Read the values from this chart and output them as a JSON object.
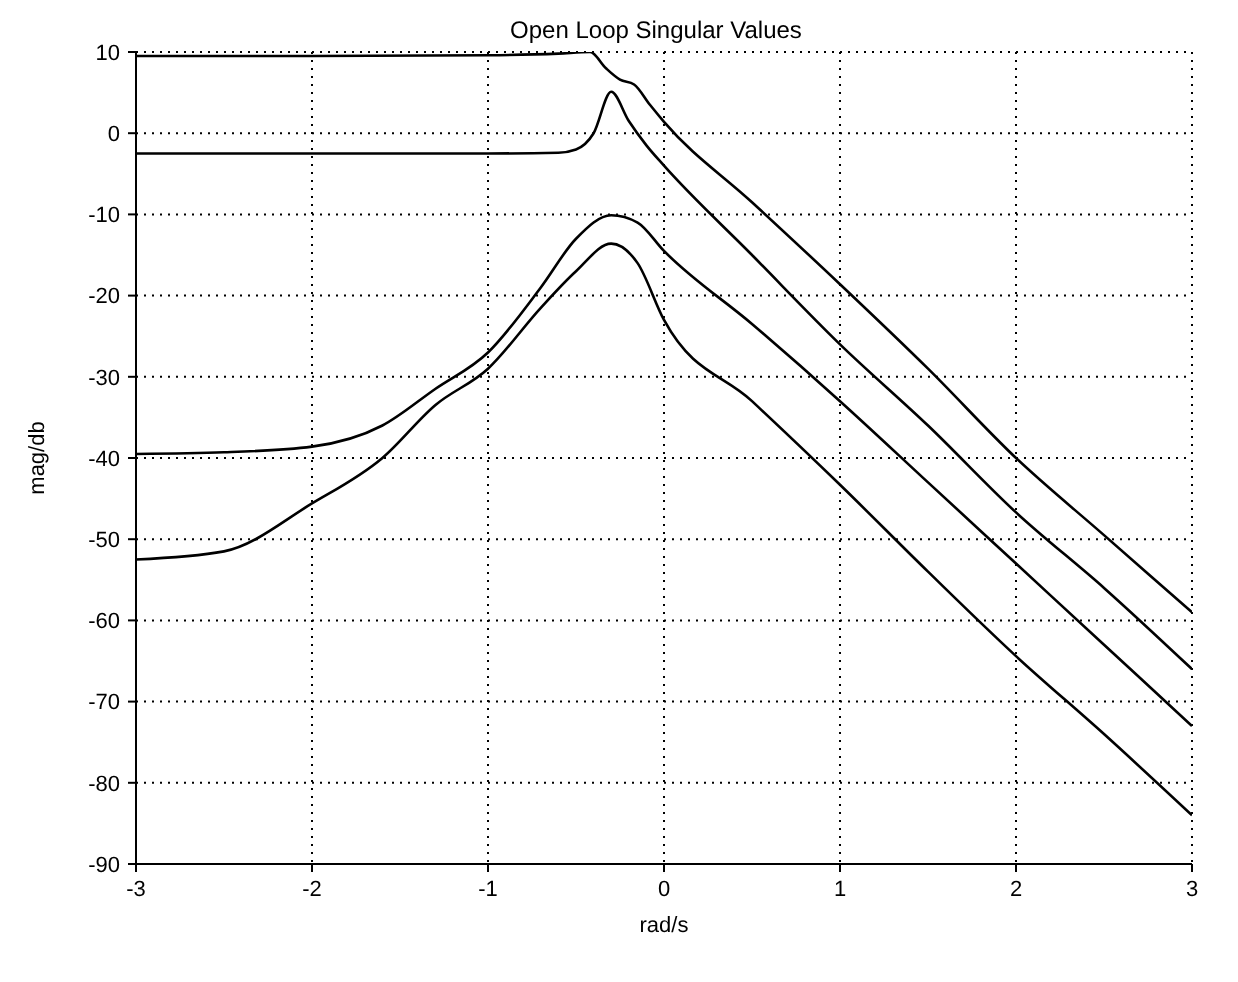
{
  "chart_data": {
    "type": "line",
    "title": "Open Loop Singular Values",
    "xlabel": "rad/s",
    "ylabel": "mag/db",
    "xlim": [
      -3,
      3
    ],
    "xticks": [
      -3,
      -2,
      -1,
      0,
      1,
      2,
      3
    ],
    "ylim": [
      -90,
      10
    ],
    "yticks": [
      -90,
      -80,
      -70,
      -60,
      -50,
      -40,
      -30,
      -20,
      -10,
      0,
      10
    ],
    "grid": true,
    "legend": false,
    "marker": "none",
    "line_style": "solid",
    "series": [
      {
        "color": "#000000",
        "x": [
          -3,
          -2,
          -1,
          -0.6,
          -0.42,
          -0.33,
          -0.25,
          -0.17,
          -0.08,
          0,
          0.5,
          1,
          1.5,
          2,
          2.5,
          3
        ],
        "values": [
          9.5,
          9.5,
          9.6,
          9.8,
          10,
          8,
          6.6,
          6,
          3.5,
          1.4,
          -8.5,
          -18.6,
          -29,
          -40,
          -49.5,
          -59
        ]
      },
      {
        "color": "#000000",
        "x": [
          -3,
          -2,
          -1,
          -0.6,
          -0.5,
          -0.4,
          -0.3,
          -0.2,
          -0.1,
          0,
          0.5,
          1,
          1.5,
          2,
          2.5,
          3
        ],
        "values": [
          -2.5,
          -2.5,
          -2.5,
          -2.4,
          -2,
          0,
          5.1,
          1.5,
          -1.5,
          -4,
          -15,
          -26,
          -36,
          -46.7,
          -56,
          -66
        ]
      },
      {
        "color": "#000000",
        "x": [
          -3,
          -2.5,
          -2,
          -1.6,
          -1.3,
          -1,
          -0.7,
          -0.5,
          -0.3,
          -0.15,
          0,
          0.5,
          1,
          1.5,
          2,
          2.5,
          3
        ],
        "values": [
          -39.5,
          -39.3,
          -38.6,
          -36,
          -31.5,
          -27,
          -19,
          -13,
          -10.1,
          -11,
          -14.5,
          -23.5,
          -33,
          -43,
          -53,
          -63,
          -73
        ]
      },
      {
        "color": "#000000",
        "x": [
          -3,
          -2.5,
          -2,
          -1.6,
          -1.3,
          -1,
          -0.7,
          -0.5,
          -0.3,
          -0.15,
          0,
          0.5,
          1,
          1.5,
          2,
          2.5,
          3
        ],
        "values": [
          -52.5,
          -51.5,
          -45.6,
          -40,
          -33.5,
          -29,
          -21.5,
          -17,
          -13.6,
          -16,
          -23,
          -33,
          -43.3,
          -54,
          -64.4,
          -74,
          -84
        ]
      }
    ]
  }
}
